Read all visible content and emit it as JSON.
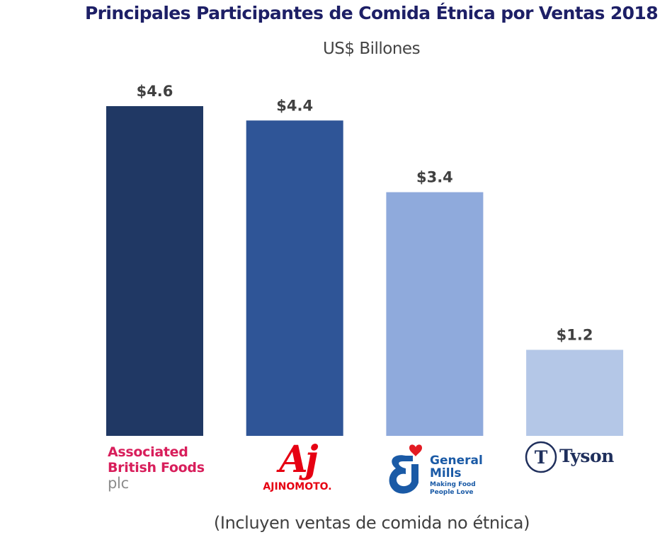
{
  "chart_data": {
    "type": "bar",
    "title": "Principales Participantes de Comida Étnica por Ventas 2018",
    "subtitle": "US$ Billones",
    "xlabel": "",
    "ylabel": "",
    "ylim": [
      0,
      4.6
    ],
    "grid": false,
    "categories": [
      "Associated British Foods plc",
      "Ajinomoto",
      "General Mills",
      "Tyson"
    ],
    "values": [
      4.6,
      4.4,
      3.4,
      1.2
    ],
    "data_labels": [
      "$4.6",
      "$4.4",
      "$3.4",
      "$1.2"
    ],
    "colors": [
      "#203864",
      "#2f5597",
      "#8faadc",
      "#b4c7e7"
    ],
    "footnote": "(Incluyen ventas de comida no étnica)"
  },
  "logos": {
    "abf": {
      "line1": "Associated",
      "line2": "British Foods",
      "line3": "plc",
      "color": "#d81e5b"
    },
    "ajinomoto": {
      "mark": "Aj",
      "word": "AJINOMOTO.",
      "color": "#e60012"
    },
    "general_mills": {
      "mark": "G",
      "line1": "General",
      "line2": "Mills",
      "tag1": "Making Food",
      "tag2": "People Love",
      "color": "#1a5aa6",
      "heart_color": "#e31b23"
    },
    "tyson": {
      "mark": "T",
      "word": "Tyson",
      "color": "#1f2f5c"
    }
  }
}
